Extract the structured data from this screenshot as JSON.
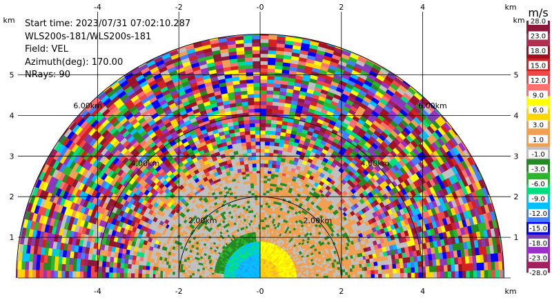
{
  "info": {
    "start_time": "Start time: 2023/07/31 07:02:10.287",
    "source": "WLS200s-181/WLS200s-181",
    "field": "Field: VEL",
    "azimuth": "Azimuth(deg): 170.00",
    "nrays": "NRays: 90"
  },
  "axes": {
    "unit_label": "km",
    "x_ticks": [
      "-4",
      "-2",
      "-0",
      "2",
      "4"
    ],
    "x_tick_values": [
      -4,
      -2,
      0,
      2,
      4
    ],
    "y_ticks": [
      "1",
      "2",
      "3",
      "4",
      "5"
    ],
    "y_tick_values": [
      1,
      2,
      3,
      4,
      5
    ],
    "xlim": [
      -6.0,
      6.0
    ],
    "ylim": [
      0,
      6.0
    ]
  },
  "range_rings": {
    "labels": [
      "2.00km",
      "4.00km",
      "6.00km"
    ],
    "values_km": [
      2,
      4,
      6
    ]
  },
  "colorbar": {
    "unit": "m/s",
    "labels": [
      "28.0",
      "23.0",
      "18.0",
      "15.0",
      "12.0",
      "9.0",
      "6.0",
      "3.0",
      "1.0",
      "-1.0",
      "-3.0",
      "-6.0",
      "-9.0",
      "-12.0",
      "-15.0",
      "-18.0",
      "-23.0",
      "-28.0"
    ],
    "colors": [
      "#8b1a3a",
      "#b03050",
      "#a01020",
      "#d42020",
      "#f04848",
      "#ff7070",
      "#ffff00",
      "#ffd700",
      "#f0a050",
      "#f0a050",
      "#c0c0c0",
      "#228b22",
      "#2db52d",
      "#00e080",
      "#00c0ff",
      "#4080ff",
      "#0000ff",
      "#7b3fb0",
      "#9b30c8",
      "#a02060"
    ]
  },
  "chart_data": {
    "type": "heatmap",
    "title": "",
    "field": "VEL",
    "units": "m/s",
    "azimuth_deg": 170.0,
    "nrays": 90,
    "xlabel": "km",
    "ylabel": "km",
    "xlim": [
      -6.0,
      6.0
    ],
    "ylim": [
      0,
      6.0
    ],
    "max_range_km": 6.0,
    "colorbar_range": [
      -28.0,
      28.0
    ],
    "regions": [
      {
        "label": "near range, left (negative x)",
        "range_km": [
          0,
          0.9
        ],
        "value_ms": -10.0
      },
      {
        "label": "near range, right (positive x)",
        "range_km": [
          0,
          0.9
        ],
        "value_ms": 7.0
      },
      {
        "label": "mid range",
        "range_km": [
          0.9,
          2.6
        ],
        "value_ms": 1.0
      },
      {
        "label": "far range noise",
        "range_km": [
          2.6,
          6.0
        ],
        "value_ms": "noisy"
      }
    ]
  }
}
